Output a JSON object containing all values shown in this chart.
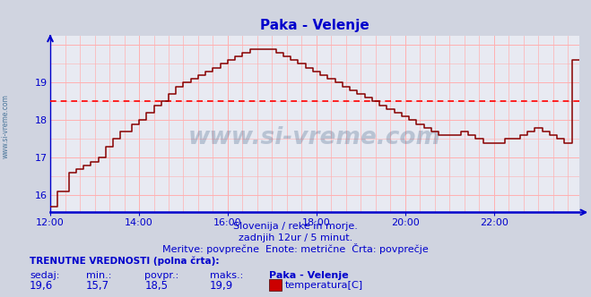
{
  "title": "Paka - Velenje",
  "title_color": "#0000cc",
  "bg_color": "#d0d4e0",
  "plot_bg_color": "#e8eaf2",
  "grid_color": "#ffb0b0",
  "axis_color": "#0000cc",
  "line_color": "#880000",
  "avg_line_color": "#ff0000",
  "avg_line_value": 18.5,
  "ylim": [
    15.55,
    20.25
  ],
  "yticks": [
    16,
    17,
    18,
    19
  ],
  "xlim_start": 0,
  "xlim_end": 143,
  "xtick_positions": [
    0,
    24,
    48,
    72,
    96,
    120
  ],
  "xtick_labels": [
    "12:00",
    "14:00",
    "16:00",
    "18:00",
    "20:00",
    "22:00"
  ],
  "subtitle1": "Slovenija / reke in morje.",
  "subtitle2": "zadnjih 12ur / 5 minut.",
  "subtitle3": "Meritve: povprečne  Enote: metrične  Črta: povprečje",
  "footer_title": "TRENUTNE VREDNOSTI (polna črta):",
  "footer_labels": [
    "sedaj:",
    "min.:",
    "povpr.:",
    "maks.:",
    "Paka - Velenje"
  ],
  "footer_values": [
    "19,6",
    "15,7",
    "18,5",
    "19,9"
  ],
  "footer_series_label": "temperatura[C]",
  "footer_series_color": "#cc0000",
  "watermark": "www.si-vreme.com",
  "watermark_color": "#2a4f7a",
  "watermark_alpha": 0.25,
  "ylabel_text": "www.si-vreme.com",
  "ylabel_color": "#2a5f8a",
  "data_y": [
    15.7,
    15.7,
    16.1,
    16.1,
    16.1,
    16.6,
    16.6,
    16.7,
    16.7,
    16.8,
    16.8,
    16.9,
    16.9,
    17.0,
    17.0,
    17.3,
    17.3,
    17.5,
    17.5,
    17.7,
    17.7,
    17.7,
    17.9,
    17.9,
    18.0,
    18.0,
    18.2,
    18.2,
    18.4,
    18.4,
    18.5,
    18.5,
    18.7,
    18.7,
    18.9,
    18.9,
    19.0,
    19.0,
    19.1,
    19.1,
    19.2,
    19.2,
    19.3,
    19.3,
    19.4,
    19.4,
    19.5,
    19.5,
    19.6,
    19.6,
    19.7,
    19.7,
    19.8,
    19.8,
    19.9,
    19.9,
    19.9,
    19.9,
    19.9,
    19.9,
    19.9,
    19.8,
    19.8,
    19.7,
    19.7,
    19.6,
    19.6,
    19.5,
    19.5,
    19.4,
    19.4,
    19.3,
    19.3,
    19.2,
    19.2,
    19.1,
    19.1,
    19.0,
    19.0,
    18.9,
    18.9,
    18.8,
    18.8,
    18.7,
    18.7,
    18.6,
    18.6,
    18.5,
    18.5,
    18.4,
    18.4,
    18.3,
    18.3,
    18.2,
    18.2,
    18.1,
    18.1,
    18.0,
    18.0,
    17.9,
    17.9,
    17.8,
    17.8,
    17.7,
    17.7,
    17.6,
    17.6,
    17.6,
    17.6,
    17.6,
    17.6,
    17.7,
    17.7,
    17.6,
    17.6,
    17.5,
    17.5,
    17.4,
    17.4,
    17.4,
    17.4,
    17.4,
    17.4,
    17.5,
    17.5,
    17.5,
    17.5,
    17.6,
    17.6,
    17.7,
    17.7,
    17.8,
    17.8,
    17.7,
    17.7,
    17.6,
    17.6,
    17.5,
    17.5,
    17.4,
    17.4,
    19.6,
    19.6,
    19.6
  ]
}
